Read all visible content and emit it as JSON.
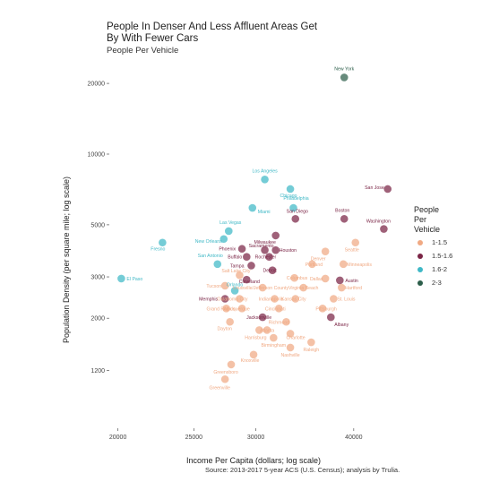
{
  "chart_data": {
    "type": "scatter",
    "title": "People In Denser And Less Affluent Areas Get By With Fewer Cars",
    "subtitle": "People Per Vehicle",
    "caption": "Source: 2013-2017 5-year ACS (U.S. Census); analysis by Trulia.",
    "xlabel": "Income Per Capita (dollars; log scale)",
    "ylabel": "Population Density (per square mile; log scale)",
    "x_scale": "log",
    "y_scale": "log",
    "xlim": [
      19500,
      46500
    ],
    "ylim": [
      680,
      24500
    ],
    "x_ticks": [
      20000,
      25000,
      30000,
      40000
    ],
    "y_ticks": [
      1200,
      2000,
      3000,
      5000,
      10000,
      20000
    ],
    "grid": false,
    "legend": {
      "title": "People Per Vehicle",
      "position": "right",
      "entries": [
        {
          "label": "1-1.5",
          "color": "#f0a983"
        },
        {
          "label": "1.5-1.6",
          "color": "#7a2445"
        },
        {
          "label": "1.6-2",
          "color": "#3fb8c6"
        },
        {
          "label": "2-3",
          "color": "#2c5e4a"
        }
      ]
    },
    "points": [
      {
        "label": "New York",
        "x": 38900,
        "y": 21200,
        "group": "2-3"
      },
      {
        "label": "Los Angeles",
        "x": 30800,
        "y": 7800,
        "group": "1.6-2"
      },
      {
        "label": "Chicago",
        "x": 33200,
        "y": 7100,
        "group": "1.6-2"
      },
      {
        "label": "San Jose",
        "x": 44200,
        "y": 7100,
        "group": "1.5-1.6"
      },
      {
        "label": "Philadelphia",
        "x": 33500,
        "y": 5900,
        "group": "1.6-2"
      },
      {
        "label": "Miami",
        "x": 29700,
        "y": 5900,
        "group": "1.6-2"
      },
      {
        "label": "Boston",
        "x": 38900,
        "y": 5300,
        "group": "1.5-1.6"
      },
      {
        "label": "San Diego",
        "x": 33700,
        "y": 5300,
        "group": "1.5-1.6"
      },
      {
        "label": "Washington",
        "x": 43700,
        "y": 4800,
        "group": "1.5-1.6"
      },
      {
        "label": "Las Vegas",
        "x": 27700,
        "y": 4700,
        "group": "1.6-2"
      },
      {
        "label": "Milwaukee",
        "x": 31800,
        "y": 4500,
        "group": "1.5-1.6"
      },
      {
        "label": "New Orleans",
        "x": 27300,
        "y": 4350,
        "group": "1.6-2"
      },
      {
        "label": "Fresno",
        "x": 22800,
        "y": 4200,
        "group": "1.6-2"
      },
      {
        "label": "Seattle",
        "x": 40200,
        "y": 4200,
        "group": "1-1.5"
      },
      {
        "label": "Phoenix",
        "x": 28800,
        "y": 3950,
        "group": "1.5-1.6"
      },
      {
        "label": "Sacramento",
        "x": 30800,
        "y": 3900,
        "group": "1.5-1.6"
      },
      {
        "label": "Houston",
        "x": 31800,
        "y": 3900,
        "group": "1.5-1.6"
      },
      {
        "label": "Denver",
        "x": 36800,
        "y": 3850,
        "group": "1-1.5"
      },
      {
        "label": "Buffalo",
        "x": 29200,
        "y": 3650,
        "group": "1.5-1.6"
      },
      {
        "label": "Rochester",
        "x": 31200,
        "y": 3650,
        "group": "1.5-1.6"
      },
      {
        "label": "San Antonio",
        "x": 26800,
        "y": 3400,
        "group": "1.6-2"
      },
      {
        "label": "Minneapolis",
        "x": 38800,
        "y": 3400,
        "group": "1-1.5"
      },
      {
        "label": "Portland",
        "x": 35400,
        "y": 3400,
        "group": "1-1.5"
      },
      {
        "label": "Tampa",
        "x": 29600,
        "y": 3350,
        "group": "1.5-1.6"
      },
      {
        "label": "Detroit",
        "x": 31500,
        "y": 3200,
        "group": "1.5-1.6"
      },
      {
        "label": "El Paso",
        "x": 20200,
        "y": 2950,
        "group": "1.6-2"
      },
      {
        "label": "Salt Lake City",
        "x": 28600,
        "y": 3050,
        "group": "1-1.5"
      },
      {
        "label": "Cleveland",
        "x": 29200,
        "y": 2920,
        "group": "1.5-1.6"
      },
      {
        "label": "Columbus",
        "x": 33600,
        "y": 2970,
        "group": "1-1.5"
      },
      {
        "label": "Dallas",
        "x": 36800,
        "y": 2950,
        "group": "1-1.5"
      },
      {
        "label": "Austin",
        "x": 38400,
        "y": 2900,
        "group": "1.5-1.6"
      },
      {
        "label": "Tucson",
        "x": 27400,
        "y": 2750,
        "group": "1-1.5"
      },
      {
        "label": "Orlando",
        "x": 28200,
        "y": 2620,
        "group": "1.6-2"
      },
      {
        "label": "Louisville/Jefferson County",
        "x": 30600,
        "y": 2700,
        "group": "1-1.5"
      },
      {
        "label": "Virginia Beach",
        "x": 34500,
        "y": 2700,
        "group": "1-1.5"
      },
      {
        "label": "Hartford",
        "x": 38600,
        "y": 2700,
        "group": "1-1.5"
      },
      {
        "label": "Memphis",
        "x": 27400,
        "y": 2420,
        "group": "1.5-1.6"
      },
      {
        "label": "Oklahoma City",
        "x": 28600,
        "y": 2420,
        "group": "1-1.5"
      },
      {
        "label": "Indianapolis",
        "x": 31700,
        "y": 2420,
        "group": "1-1.5"
      },
      {
        "label": "Kansas City",
        "x": 33700,
        "y": 2420,
        "group": "1-1.5"
      },
      {
        "label": "St. Louis",
        "x": 37700,
        "y": 2420,
        "group": "1-1.5"
      },
      {
        "label": "Grand Rapids",
        "x": 27500,
        "y": 2200,
        "group": "1-1.5"
      },
      {
        "label": "Albuquerque",
        "x": 28800,
        "y": 2200,
        "group": "1-1.5"
      },
      {
        "label": "Cincinnati",
        "x": 32100,
        "y": 2200,
        "group": "1-1.5"
      },
      {
        "label": "Pittsburgh",
        "x": 36500,
        "y": 2200,
        "group": "1-1.5"
      },
      {
        "label": "Jacksonville",
        "x": 30600,
        "y": 2020,
        "group": "1.5-1.6"
      },
      {
        "label": "Albany",
        "x": 37400,
        "y": 2020,
        "group": "1.5-1.6"
      },
      {
        "label": "Dayton",
        "x": 27800,
        "y": 1930,
        "group": "1-1.5"
      },
      {
        "label": "Richmond",
        "x": 32800,
        "y": 1930,
        "group": "1-1.5"
      },
      {
        "label": "Atlanta",
        "x": 31000,
        "y": 1780,
        "group": "1-1.5"
      },
      {
        "label": "Harrisburg",
        "x": 30300,
        "y": 1780,
        "group": "1-1.5"
      },
      {
        "label": "Charlotte",
        "x": 33200,
        "y": 1720,
        "group": "1-1.5"
      },
      {
        "label": "Birmingham",
        "x": 31600,
        "y": 1650,
        "group": "1-1.5"
      },
      {
        "label": "Raleigh",
        "x": 35300,
        "y": 1580,
        "group": "1-1.5"
      },
      {
        "label": "Nashville",
        "x": 33200,
        "y": 1500,
        "group": "1-1.5"
      },
      {
        "label": "Knoxville",
        "x": 29800,
        "y": 1400,
        "group": "1-1.5"
      },
      {
        "label": "Greensboro",
        "x": 27900,
        "y": 1270,
        "group": "1-1.5"
      },
      {
        "label": "Greenville",
        "x": 27400,
        "y": 1100,
        "group": "1-1.5"
      }
    ]
  }
}
